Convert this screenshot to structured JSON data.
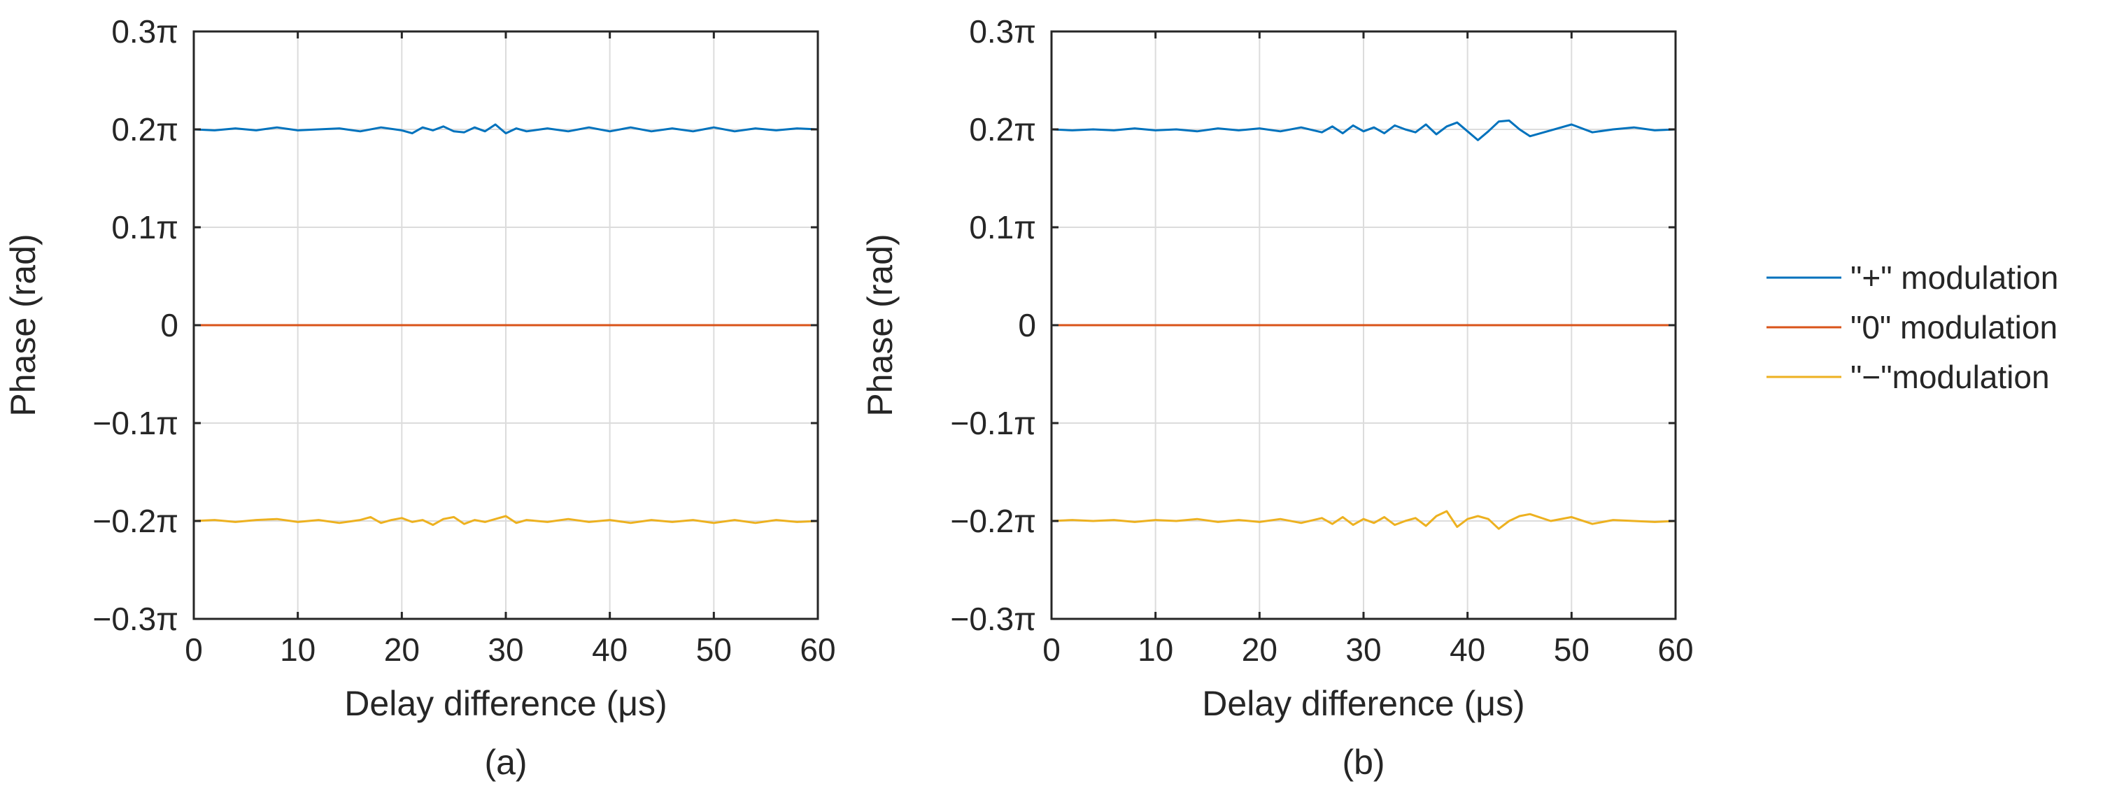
{
  "chart_data": [
    {
      "panel": "(a)",
      "type": "line",
      "xlabel": "Delay difference (μs)",
      "ylabel": "Phase (rad)",
      "caption": "(a)",
      "xlim": [
        0,
        60
      ],
      "ylim": [
        -0.3,
        0.3
      ],
      "xticks": [
        0,
        10,
        20,
        30,
        40,
        50,
        60
      ],
      "xtick_labels": [
        "0",
        "10",
        "20",
        "30",
        "40",
        "50",
        "60"
      ],
      "yticks": [
        0.3,
        0.2,
        0.1,
        0,
        -0.1,
        -0.2,
        -0.3
      ],
      "ytick_labels": [
        "0.3π",
        "0.2π",
        "0.1π",
        "0",
        "−0.1π",
        "−0.2π",
        "−0.3π"
      ],
      "grid": true,
      "series": [
        {
          "name": "\"+\" modulation",
          "color": "#0072BD",
          "x": [
            0,
            2,
            4,
            6,
            8,
            10,
            12,
            14,
            16,
            18,
            20,
            21,
            22,
            23,
            24,
            25,
            26,
            27,
            28,
            29,
            30,
            31,
            32,
            34,
            36,
            38,
            40,
            42,
            44,
            46,
            48,
            50,
            52,
            54,
            56,
            58,
            60
          ],
          "values": [
            0.2,
            0.199,
            0.201,
            0.199,
            0.202,
            0.199,
            0.2,
            0.201,
            0.198,
            0.202,
            0.199,
            0.196,
            0.202,
            0.199,
            0.203,
            0.198,
            0.197,
            0.202,
            0.198,
            0.205,
            0.196,
            0.201,
            0.198,
            0.201,
            0.198,
            0.202,
            0.198,
            0.202,
            0.198,
            0.201,
            0.198,
            0.202,
            0.198,
            0.201,
            0.199,
            0.201,
            0.2
          ]
        },
        {
          "name": "\"0\" modulation",
          "color": "#D95319",
          "x": [
            0,
            60
          ],
          "values": [
            0,
            0
          ]
        },
        {
          "name": "\"−\"modulation",
          "color": "#EDB120",
          "x": [
            0,
            2,
            4,
            6,
            8,
            10,
            12,
            14,
            16,
            17,
            18,
            19,
            20,
            21,
            22,
            23,
            24,
            25,
            26,
            27,
            28,
            29,
            30,
            31,
            32,
            34,
            36,
            38,
            40,
            42,
            44,
            46,
            48,
            50,
            52,
            54,
            56,
            58,
            60
          ],
          "values": [
            -0.2,
            -0.199,
            -0.201,
            -0.199,
            -0.198,
            -0.201,
            -0.199,
            -0.202,
            -0.199,
            -0.196,
            -0.202,
            -0.199,
            -0.197,
            -0.201,
            -0.199,
            -0.204,
            -0.198,
            -0.196,
            -0.203,
            -0.199,
            -0.201,
            -0.198,
            -0.195,
            -0.202,
            -0.199,
            -0.201,
            -0.198,
            -0.201,
            -0.199,
            -0.202,
            -0.199,
            -0.201,
            -0.199,
            -0.202,
            -0.199,
            -0.202,
            -0.199,
            -0.201,
            -0.2
          ]
        }
      ]
    },
    {
      "panel": "(b)",
      "type": "line",
      "xlabel": "Delay difference (μs)",
      "ylabel": "Phase (rad)",
      "caption": "(b)",
      "xlim": [
        0,
        60
      ],
      "ylim": [
        -0.3,
        0.3
      ],
      "xticks": [
        0,
        10,
        20,
        30,
        40,
        50,
        60
      ],
      "xtick_labels": [
        "0",
        "10",
        "20",
        "30",
        "40",
        "50",
        "60"
      ],
      "yticks": [
        0.3,
        0.2,
        0.1,
        0,
        -0.1,
        -0.2,
        -0.3
      ],
      "ytick_labels": [
        "0.3π",
        "0.2π",
        "0.1π",
        "0",
        "−0.1π",
        "−0.2π",
        "−0.3π"
      ],
      "grid": true,
      "series": [
        {
          "name": "\"+\" modulation",
          "color": "#0072BD",
          "x": [
            0,
            2,
            4,
            6,
            8,
            10,
            12,
            14,
            16,
            18,
            20,
            22,
            24,
            26,
            27,
            28,
            29,
            30,
            31,
            32,
            33,
            34,
            35,
            36,
            37,
            38,
            39,
            40,
            41,
            42,
            43,
            44,
            45,
            46,
            48,
            50,
            52,
            54,
            56,
            58,
            60
          ],
          "values": [
            0.2,
            0.199,
            0.2,
            0.199,
            0.201,
            0.199,
            0.2,
            0.198,
            0.201,
            0.199,
            0.201,
            0.198,
            0.202,
            0.197,
            0.203,
            0.196,
            0.204,
            0.198,
            0.202,
            0.196,
            0.204,
            0.2,
            0.197,
            0.205,
            0.195,
            0.203,
            0.207,
            0.198,
            0.189,
            0.198,
            0.208,
            0.209,
            0.2,
            0.193,
            0.199,
            0.205,
            0.197,
            0.2,
            0.202,
            0.199,
            0.2
          ]
        },
        {
          "name": "\"0\" modulation",
          "color": "#D95319",
          "x": [
            0,
            60
          ],
          "values": [
            0,
            0
          ]
        },
        {
          "name": "\"−\"modulation",
          "color": "#EDB120",
          "x": [
            0,
            2,
            4,
            6,
            8,
            10,
            12,
            14,
            16,
            18,
            20,
            22,
            24,
            26,
            27,
            28,
            29,
            30,
            31,
            32,
            33,
            34,
            35,
            36,
            37,
            38,
            39,
            40,
            41,
            42,
            43,
            44,
            45,
            46,
            48,
            50,
            52,
            54,
            56,
            58,
            60
          ],
          "values": [
            -0.2,
            -0.199,
            -0.2,
            -0.199,
            -0.201,
            -0.199,
            -0.2,
            -0.198,
            -0.201,
            -0.199,
            -0.201,
            -0.198,
            -0.202,
            -0.197,
            -0.203,
            -0.196,
            -0.204,
            -0.198,
            -0.202,
            -0.196,
            -0.204,
            -0.2,
            -0.197,
            -0.205,
            -0.195,
            -0.19,
            -0.206,
            -0.198,
            -0.195,
            -0.198,
            -0.208,
            -0.2,
            -0.195,
            -0.193,
            -0.2,
            -0.196,
            -0.203,
            -0.199,
            -0.2,
            -0.201,
            -0.2
          ]
        }
      ]
    }
  ],
  "legend": {
    "entries": [
      {
        "label": "\"+\" modulation",
        "color": "#0072BD"
      },
      {
        "label": "\"0\" modulation",
        "color": "#D95319"
      },
      {
        "label": "\"−\"modulation",
        "color": "#EDB120"
      }
    ]
  }
}
